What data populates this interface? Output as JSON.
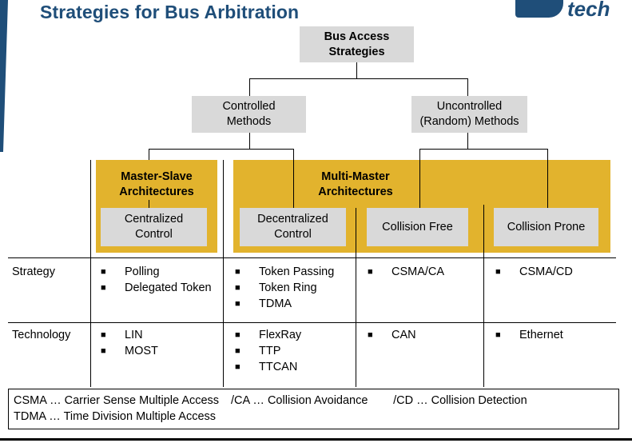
{
  "title": "Strategies for Bus Arbitration",
  "logo_text": "tech",
  "tree": {
    "root": "Bus Access\nStrategies",
    "controlled": "Controlled\nMethods",
    "uncontrolled": "Uncontrolled\n(Random) Methods",
    "master_slave": "Master-Slave\nArchitectures",
    "multi_master": "Multi-Master\nArchitectures",
    "centralized": "Centralized\nControl",
    "decentralized": "Decentralized\nControl",
    "collision_free": "Collision Free",
    "collision_prone": "Collision Prone"
  },
  "bullet": "■",
  "rows": [
    {
      "label": "Strategy",
      "cols": [
        [
          "Polling",
          "Delegated Token"
        ],
        [
          "Token Passing",
          "Token Ring",
          "TDMA"
        ],
        [
          "CSMA/CA"
        ],
        [
          "CSMA/CD"
        ]
      ]
    },
    {
      "label": "Technology",
      "cols": [
        [
          "LIN",
          "MOST"
        ],
        [
          "FlexRay",
          "TTP",
          "TTCAN"
        ],
        [
          "CAN"
        ],
        [
          "Ethernet"
        ]
      ]
    }
  ],
  "footer": {
    "line1_a": "CSMA … Carrier Sense Multiple Access",
    "line1_b": "/CA … Collision Avoidance",
    "line1_c": "/CD … Collision Detection",
    "line2": "TDMA … Time Division Multiple Access"
  },
  "colors": {
    "title": "#1f4e79",
    "gray_box": "#d9d9d9",
    "yellow_box": "#e2b32d"
  }
}
